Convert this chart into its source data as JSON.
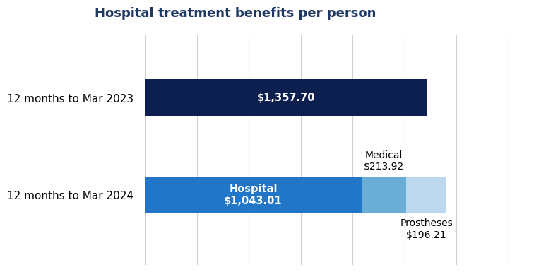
{
  "title": "Hospital treatment benefits per person",
  "title_color": "#1F3864",
  "title_fontsize": 13,
  "title_fontweight": "bold",
  "categories": [
    "12 months to Mar 2024",
    "12 months to Mar 2023"
  ],
  "bar_2023_value": 1357.7,
  "bar_2023_color": "#0D1F4E",
  "bar_2023_label": "$1,357.70",
  "bar_2024_hospital": 1043.01,
  "bar_2024_medical": 213.92,
  "bar_2024_prostheses": 196.21,
  "bar_2024_hospital_color": "#2176C7",
  "bar_2024_medical_color": "#6AAED6",
  "bar_2024_prostheses_color": "#BDD7EE",
  "bar_2024_hospital_label": "Hospital\n$1,043.01",
  "bar_2024_medical_label": "Medical\n$213.92",
  "bar_2024_prostheses_label": "Prostheses\n$196.21",
  "background_color": "#ffffff",
  "xlim_max": 1900,
  "grid_color": "#d0d0d0",
  "tick_label_fontsize": 11,
  "annotation_fontsize": 10.5,
  "bar_height": 0.38
}
